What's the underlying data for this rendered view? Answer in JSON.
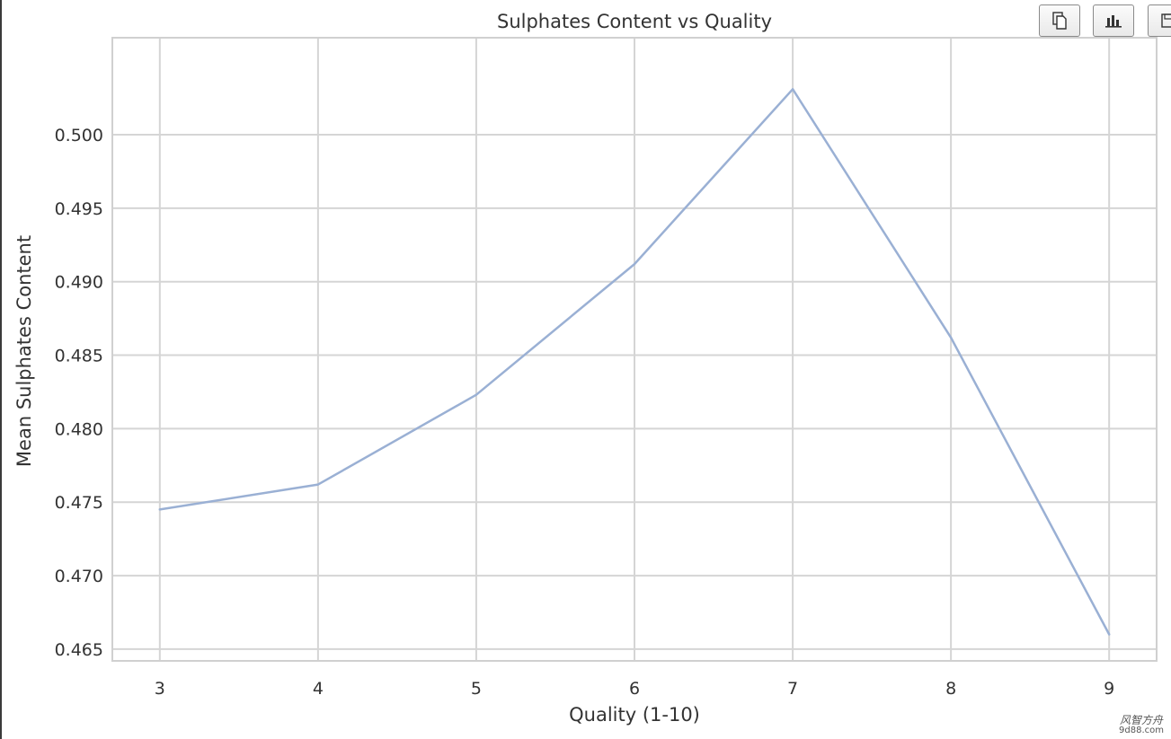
{
  "toolbar": {
    "buttons": [
      {
        "name": "copy-icon"
      },
      {
        "name": "bar-chart-icon"
      },
      {
        "name": "save-icon"
      }
    ]
  },
  "watermark": {
    "line1": "风智方舟",
    "line2": "9d88.com"
  },
  "colors": {
    "line": "#9ab0d4",
    "grid": "#d5d5d5",
    "frame": "#d0d0d0",
    "text": "#333333"
  },
  "chart_data": {
    "type": "line",
    "title": "Sulphates Content vs Quality",
    "xlabel": "Quality (1-10)",
    "ylabel": "Mean Sulphates Content",
    "x": [
      3,
      4,
      5,
      6,
      7,
      8,
      9
    ],
    "y": [
      0.4745,
      0.4762,
      0.4823,
      0.4912,
      0.5031,
      0.4862,
      0.466
    ],
    "x_ticks": [
      "3",
      "4",
      "5",
      "6",
      "7",
      "8",
      "9"
    ],
    "y_tick_values": [
      0.465,
      0.47,
      0.475,
      0.48,
      0.485,
      0.49,
      0.495,
      0.5
    ],
    "y_ticks": [
      "0.465",
      "0.470",
      "0.475",
      "0.480",
      "0.485",
      "0.490",
      "0.495",
      "0.500"
    ],
    "xlim": [
      2.7,
      9.3
    ],
    "ylim": [
      0.4642,
      0.5066
    ],
    "grid": true,
    "legend": "none"
  }
}
